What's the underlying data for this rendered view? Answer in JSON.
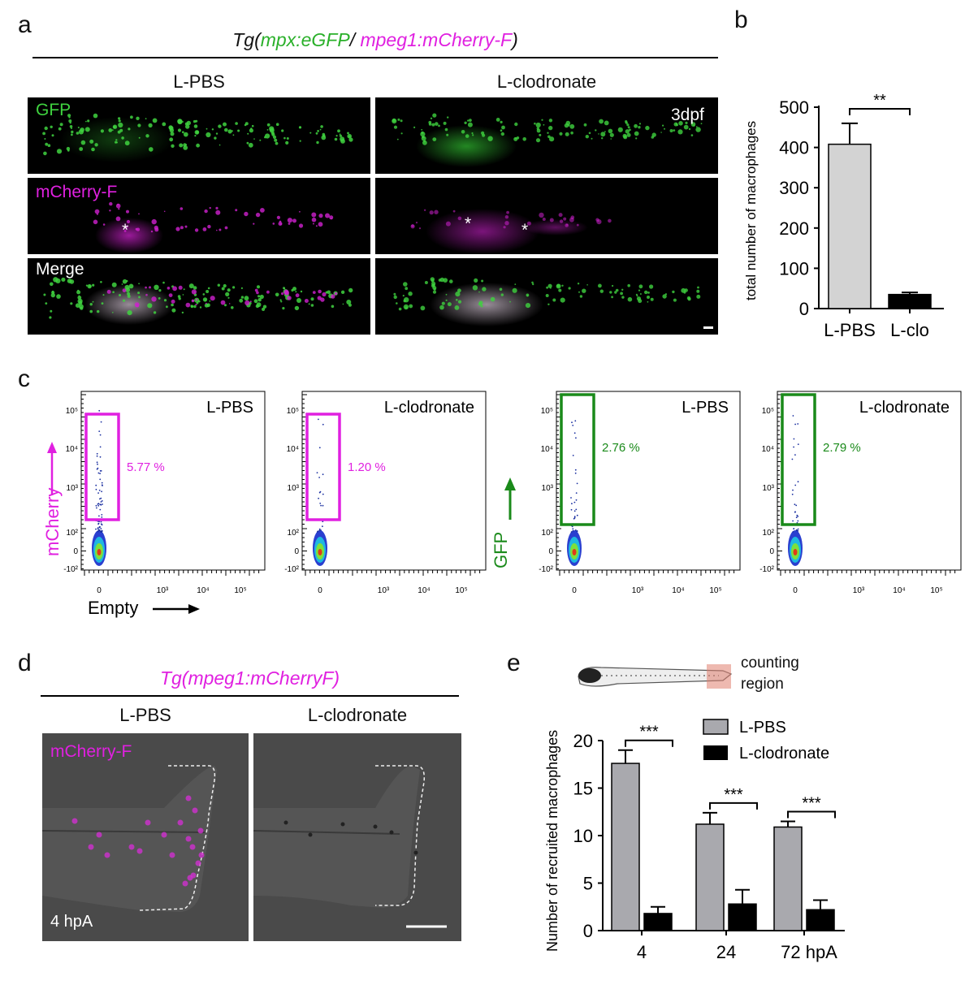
{
  "panels": {
    "a": "a",
    "b": "b",
    "c": "c",
    "d": "d",
    "e": "e"
  },
  "panel_a": {
    "title_prefix": "Tg(",
    "title_green": "mpx:eGFP",
    "title_sep": "/ ",
    "title_magenta": "mpeg1:mCherry-F",
    "title_suffix": ")",
    "col_left": "L-PBS",
    "col_right": "L-clodronate",
    "row_gfp": "GFP",
    "row_mcherry": "mCherry-F",
    "row_merge": "Merge",
    "stage": "3dpf",
    "asterisk": "*"
  },
  "panel_b": {
    "ylabel": "total number of macrophages",
    "significance": "**",
    "colors": {
      "lpbs": "#d3d3d3",
      "lclo": "#000000"
    }
  },
  "panel_c": {
    "plots": [
      {
        "label": "L-PBS",
        "percent": "5.77 %",
        "gate_color": "#e020e0"
      },
      {
        "label": "L-clodronate",
        "percent": "1.20 %",
        "gate_color": "#e020e0"
      },
      {
        "label": "L-PBS",
        "percent": "2.76 %",
        "gate_color": "#1a8a1a"
      },
      {
        "label": "L-clodronate",
        "percent": "2.79 %",
        "gate_color": "#1a8a1a"
      }
    ],
    "ylabel_left": "mCherry",
    "ylabel_right": "GFP",
    "xlabel": "Empty",
    "y_ticks": [
      "10⁵",
      "10⁴",
      "10³",
      "10²",
      "0",
      "-10²"
    ],
    "x_ticks": [
      "0",
      "10³",
      "10⁴",
      "10⁵"
    ]
  },
  "panel_d": {
    "title": "Tg(mpeg1:mCherryF)",
    "col_left": "L-PBS",
    "col_right": "L-clodronate",
    "channel": "mCherry-F",
    "time": "4 hpA"
  },
  "panel_e": {
    "counting_label_1": "counting",
    "counting_label_2": "region",
    "ylabel": "Number of recruited macrophages",
    "legend_lpbs": "L-PBS",
    "legend_lclo": "L-clodronate",
    "significance": "***"
  },
  "chart_data": [
    {
      "type": "bar",
      "categories": [
        "L-PBS",
        "L-clo"
      ],
      "values": [
        408,
        35
      ],
      "errors": [
        52,
        5
      ],
      "ylabel": "total number of macrophages",
      "ylim": [
        0,
        500
      ],
      "yticks": [
        0,
        100,
        200,
        300,
        400,
        500
      ],
      "colors": [
        "#d3d3d3",
        "#000000"
      ]
    },
    {
      "type": "bar",
      "categories": [
        "4",
        "24",
        "72 hpA"
      ],
      "series": [
        {
          "name": "L-PBS",
          "values": [
            17.6,
            11.2,
            10.9
          ],
          "errors": [
            1.4,
            1.2,
            0.6
          ],
          "color": "#a9a9ae"
        },
        {
          "name": "L-clodronate",
          "values": [
            1.8,
            2.8,
            2.2
          ],
          "errors": [
            0.7,
            1.5,
            1.0
          ],
          "color": "#000000"
        }
      ],
      "ylabel": "Number of recruited macrophages",
      "ylim": [
        0,
        20
      ],
      "yticks": [
        0,
        5,
        10,
        15,
        20
      ]
    }
  ]
}
